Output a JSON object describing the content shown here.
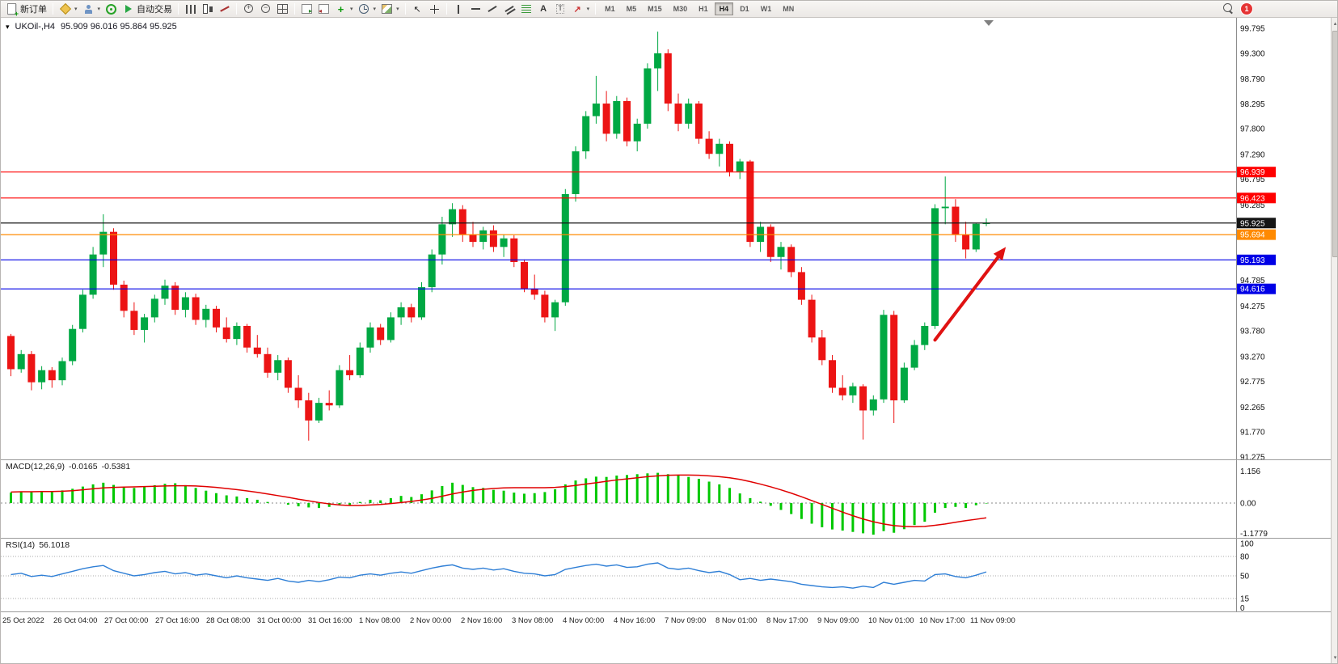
{
  "window": {
    "title_symbol": "UKOil-,H4",
    "ohlc": "95.909 96.016 95.864 95.925"
  },
  "toolbar": {
    "groups": [
      {
        "items": [
          {
            "name": "new-order",
            "icon": "neworder",
            "label": "新订单"
          }
        ]
      },
      {
        "items": [
          {
            "name": "new-chart",
            "icon": "newchart",
            "dropdown": true
          },
          {
            "name": "profiles",
            "icon": "profiles",
            "dropdown": true
          },
          {
            "name": "signals",
            "icon": "signals"
          },
          {
            "name": "auto-trading",
            "icon": "play",
            "label": "自动交易"
          }
        ]
      },
      {
        "items": [
          {
            "name": "bar-chart",
            "icon": "bars"
          },
          {
            "name": "candlestick-chart",
            "icon": "candles"
          },
          {
            "name": "line-chart",
            "icon": "linechart"
          }
        ]
      },
      {
        "items": [
          {
            "name": "zoom-in",
            "icon": "zoomin"
          },
          {
            "name": "zoom-out",
            "icon": "zoomout"
          },
          {
            "name": "tile-windows",
            "icon": "tile"
          }
        ]
      },
      {
        "items": [
          {
            "name": "auto-scroll",
            "icon": "autoscroll"
          },
          {
            "name": "chart-shift",
            "icon": "chartshift"
          },
          {
            "name": "indicators",
            "icon": "indicators",
            "dropdown": true
          },
          {
            "name": "periods",
            "icon": "clock",
            "dropdown": true
          },
          {
            "name": "templates",
            "icon": "templates",
            "dropdown": true
          }
        ]
      },
      {
        "items": [
          {
            "name": "cursor",
            "icon": "cursor"
          },
          {
            "name": "crosshair",
            "icon": "crosshair"
          }
        ]
      },
      {
        "items": [
          {
            "name": "vertical-line",
            "icon": "vline"
          },
          {
            "name": "horizontal-line",
            "icon": "hline"
          },
          {
            "name": "trendline",
            "icon": "trend"
          },
          {
            "name": "equidistant-channel",
            "icon": "channel"
          },
          {
            "name": "fibonacci",
            "icon": "fibo"
          },
          {
            "name": "text",
            "icon": "textA"
          },
          {
            "name": "text-label",
            "icon": "textT"
          },
          {
            "name": "arrows",
            "icon": "arrowtool",
            "dropdown": true
          }
        ]
      }
    ],
    "timeframes": [
      {
        "label": "M1"
      },
      {
        "label": "M5"
      },
      {
        "label": "M15"
      },
      {
        "label": "M30"
      },
      {
        "label": "H1"
      },
      {
        "label": "H4",
        "active": true
      },
      {
        "label": "D1"
      },
      {
        "label": "W1"
      },
      {
        "label": "MN"
      }
    ],
    "notification_count": "1"
  },
  "chart_data": {
    "type": "candlestick",
    "symbol": "UKOil-",
    "period": "H4",
    "ohlc_display": {
      "open": "95.909",
      "high": "96.016",
      "low": "95.864",
      "close": "95.925"
    },
    "colors": {
      "up": "#00A843",
      "down": "#EC1414"
    },
    "price_axis_ticks": [
      "99.795",
      "99.300",
      "98.790",
      "98.295",
      "97.800",
      "97.290",
      "96.795",
      "96.285",
      "94.785",
      "94.275",
      "93.780",
      "93.270",
      "92.775",
      "92.265",
      "91.770",
      "91.275"
    ],
    "horizontal_lines": [
      {
        "price": 96.939,
        "color": "#FF0000",
        "label": "96.939"
      },
      {
        "price": 96.423,
        "color": "#FF0000",
        "label": "96.423"
      },
      {
        "price": 95.925,
        "color": "#151515",
        "label": "95.925"
      },
      {
        "price": 95.694,
        "color": "#FF8A00",
        "label": "95.694"
      },
      {
        "price": 95.193,
        "color": "#0000E6",
        "label": "95.193"
      },
      {
        "price": 94.616,
        "color": "#0000E6",
        "label": "94.616"
      }
    ],
    "arrow_annotation": {
      "from_bar": 90,
      "from_price": 93.6,
      "to_bar": 96.9,
      "to_price": 95.45,
      "color": "#E01212"
    },
    "candles": [
      [
        93.68,
        93.72,
        92.88,
        93.02
      ],
      [
        93.02,
        93.4,
        92.95,
        93.32
      ],
      [
        93.32,
        93.38,
        92.6,
        92.76
      ],
      [
        92.76,
        93.08,
        92.62,
        93.0
      ],
      [
        93.0,
        93.06,
        92.65,
        92.8
      ],
      [
        92.8,
        93.25,
        92.7,
        93.18
      ],
      [
        93.18,
        93.9,
        93.1,
        93.82
      ],
      [
        93.82,
        94.6,
        93.75,
        94.5
      ],
      [
        94.5,
        95.45,
        94.42,
        95.3
      ],
      [
        95.3,
        96.1,
        95.05,
        95.75
      ],
      [
        95.75,
        95.82,
        94.6,
        94.7
      ],
      [
        94.7,
        94.78,
        94.05,
        94.18
      ],
      [
        94.18,
        94.35,
        93.7,
        93.8
      ],
      [
        93.8,
        94.12,
        93.55,
        94.05
      ],
      [
        94.05,
        94.5,
        93.95,
        94.42
      ],
      [
        94.42,
        94.8,
        94.3,
        94.68
      ],
      [
        94.68,
        94.75,
        94.1,
        94.2
      ],
      [
        94.2,
        94.55,
        94.05,
        94.45
      ],
      [
        94.45,
        94.52,
        93.9,
        94.0
      ],
      [
        94.0,
        94.3,
        93.85,
        94.22
      ],
      [
        94.22,
        94.28,
        93.75,
        93.85
      ],
      [
        93.85,
        94.05,
        93.55,
        93.62
      ],
      [
        93.62,
        93.95,
        93.5,
        93.88
      ],
      [
        93.88,
        93.92,
        93.35,
        93.45
      ],
      [
        93.45,
        93.7,
        93.25,
        93.32
      ],
      [
        93.32,
        93.45,
        92.85,
        92.95
      ],
      [
        92.95,
        93.3,
        92.8,
        93.2
      ],
      [
        93.2,
        93.25,
        92.55,
        92.65
      ],
      [
        92.65,
        92.9,
        92.25,
        92.4
      ],
      [
        92.4,
        92.55,
        91.6,
        92.0
      ],
      [
        92.0,
        92.45,
        91.95,
        92.35
      ],
      [
        92.35,
        92.6,
        92.2,
        92.3
      ],
      [
        92.3,
        93.1,
        92.25,
        93.0
      ],
      [
        93.0,
        93.3,
        92.8,
        92.9
      ],
      [
        92.9,
        93.55,
        92.85,
        93.45
      ],
      [
        93.45,
        93.95,
        93.35,
        93.85
      ],
      [
        93.85,
        93.92,
        93.5,
        93.6
      ],
      [
        93.6,
        94.15,
        93.55,
        94.05
      ],
      [
        94.05,
        94.35,
        93.9,
        94.25
      ],
      [
        94.25,
        94.32,
        93.95,
        94.05
      ],
      [
        94.05,
        94.75,
        94.0,
        94.65
      ],
      [
        94.65,
        95.4,
        94.55,
        95.3
      ],
      [
        95.3,
        96.05,
        95.1,
        95.9
      ],
      [
        95.9,
        96.32,
        95.65,
        96.2
      ],
      [
        96.2,
        96.28,
        95.55,
        95.7
      ],
      [
        95.7,
        95.95,
        95.45,
        95.55
      ],
      [
        95.55,
        95.85,
        95.4,
        95.78
      ],
      [
        95.78,
        95.88,
        95.35,
        95.45
      ],
      [
        95.45,
        95.7,
        95.25,
        95.62
      ],
      [
        95.62,
        95.68,
        95.05,
        95.15
      ],
      [
        95.15,
        95.2,
        94.55,
        94.62
      ],
      [
        94.62,
        94.9,
        94.4,
        94.5
      ],
      [
        94.5,
        94.58,
        93.95,
        94.05
      ],
      [
        94.05,
        94.4,
        93.78,
        94.35
      ],
      [
        94.35,
        96.6,
        94.28,
        96.5
      ],
      [
        96.5,
        97.45,
        96.35,
        97.35
      ],
      [
        97.35,
        98.15,
        97.2,
        98.05
      ],
      [
        98.05,
        98.85,
        97.9,
        98.3
      ],
      [
        98.3,
        98.55,
        97.55,
        97.7
      ],
      [
        97.7,
        98.45,
        97.6,
        98.35
      ],
      [
        98.35,
        98.42,
        97.45,
        97.55
      ],
      [
        97.55,
        98.0,
        97.35,
        97.9
      ],
      [
        97.9,
        99.1,
        97.8,
        99.0
      ],
      [
        99.0,
        99.73,
        98.55,
        99.3
      ],
      [
        99.3,
        99.38,
        98.15,
        98.3
      ],
      [
        98.3,
        98.5,
        97.75,
        97.9
      ],
      [
        97.9,
        98.4,
        97.8,
        98.3
      ],
      [
        98.3,
        98.35,
        97.5,
        97.6
      ],
      [
        97.6,
        97.75,
        97.2,
        97.3
      ],
      [
        97.3,
        97.6,
        97.05,
        97.5
      ],
      [
        97.5,
        97.55,
        96.85,
        96.95
      ],
      [
        96.95,
        97.2,
        96.8,
        97.15
      ],
      [
        97.15,
        97.18,
        95.45,
        95.55
      ],
      [
        95.55,
        95.95,
        95.35,
        95.85
      ],
      [
        95.85,
        95.9,
        95.15,
        95.25
      ],
      [
        95.25,
        95.55,
        95.0,
        95.45
      ],
      [
        95.45,
        95.5,
        94.85,
        94.95
      ],
      [
        94.95,
        95.05,
        94.3,
        94.4
      ],
      [
        94.4,
        94.5,
        93.55,
        93.65
      ],
      [
        93.65,
        93.8,
        93.1,
        93.2
      ],
      [
        93.2,
        93.3,
        92.55,
        92.65
      ],
      [
        92.65,
        92.9,
        92.4,
        92.5
      ],
      [
        92.5,
        92.75,
        92.35,
        92.68
      ],
      [
        92.68,
        92.72,
        91.62,
        92.2
      ],
      [
        92.2,
        92.5,
        92.1,
        92.42
      ],
      [
        92.42,
        94.2,
        92.35,
        94.1
      ],
      [
        94.1,
        94.18,
        91.95,
        92.4
      ],
      [
        92.4,
        93.15,
        92.35,
        93.05
      ],
      [
        93.05,
        93.6,
        93.0,
        93.5
      ],
      [
        93.5,
        93.95,
        93.4,
        93.88
      ],
      [
        93.88,
        96.3,
        93.82,
        96.22
      ],
      [
        96.22,
        96.85,
        95.9,
        96.25
      ],
      [
        96.25,
        96.4,
        95.55,
        95.7
      ],
      [
        95.7,
        95.95,
        95.22,
        95.4
      ],
      [
        95.4,
        95.92,
        95.35,
        95.91
      ],
      [
        95.909,
        96.016,
        95.864,
        95.925
      ]
    ]
  },
  "macd": {
    "label": "MACD(12,26,9)",
    "value_main": "-0.0165",
    "value_signal": "-0.5381",
    "axis": [
      "1.156",
      "0.00",
      "-1.1779"
    ],
    "hist_color": "#00C800",
    "signal_color": "#E00000",
    "hist": [
      0.38,
      0.42,
      0.4,
      0.44,
      0.4,
      0.46,
      0.52,
      0.6,
      0.68,
      0.74,
      0.66,
      0.56,
      0.55,
      0.6,
      0.65,
      0.7,
      0.72,
      0.65,
      0.55,
      0.45,
      0.36,
      0.28,
      0.24,
      0.18,
      0.12,
      0.04,
      0.0,
      -0.06,
      -0.12,
      -0.16,
      -0.18,
      -0.14,
      -0.06,
      -0.08,
      0.04,
      0.12,
      0.1,
      0.18,
      0.26,
      0.22,
      0.32,
      0.46,
      0.62,
      0.74,
      0.66,
      0.58,
      0.55,
      0.48,
      0.45,
      0.38,
      0.34,
      0.36,
      0.4,
      0.5,
      0.68,
      0.82,
      0.9,
      0.96,
      0.95,
      1.0,
      1.02,
      1.05,
      1.08,
      1.1,
      1.05,
      1.0,
      0.95,
      0.88,
      0.78,
      0.68,
      0.55,
      0.35,
      0.18,
      0.05,
      -0.1,
      -0.25,
      -0.4,
      -0.58,
      -0.75,
      -0.88,
      -0.96,
      -1.0,
      -1.05,
      -1.1,
      -1.15,
      -1.02,
      -1.08,
      -0.95,
      -0.8,
      -0.68,
      -0.35,
      -0.18,
      -0.14,
      -0.18,
      -0.08,
      -0.0165
    ],
    "signal": [
      0.4,
      0.41,
      0.41,
      0.42,
      0.42,
      0.43,
      0.45,
      0.48,
      0.52,
      0.55,
      0.57,
      0.58,
      0.59,
      0.6,
      0.61,
      0.62,
      0.63,
      0.63,
      0.62,
      0.6,
      0.57,
      0.53,
      0.49,
      0.44,
      0.39,
      0.33,
      0.27,
      0.21,
      0.14,
      0.08,
      0.02,
      -0.03,
      -0.07,
      -0.09,
      -0.09,
      -0.07,
      -0.05,
      -0.02,
      0.02,
      0.06,
      0.11,
      0.17,
      0.25,
      0.33,
      0.4,
      0.46,
      0.5,
      0.53,
      0.55,
      0.56,
      0.56,
      0.56,
      0.56,
      0.57,
      0.6,
      0.64,
      0.69,
      0.74,
      0.79,
      0.84,
      0.88,
      0.92,
      0.96,
      0.99,
      1.01,
      1.02,
      1.02,
      1.01,
      0.99,
      0.96,
      0.92,
      0.86,
      0.78,
      0.69,
      0.59,
      0.48,
      0.36,
      0.23,
      0.09,
      -0.05,
      -0.19,
      -0.33,
      -0.46,
      -0.58,
      -0.68,
      -0.76,
      -0.82,
      -0.85,
      -0.86,
      -0.85,
      -0.81,
      -0.76,
      -0.7,
      -0.64,
      -0.59,
      -0.5381
    ]
  },
  "rsi": {
    "label": "RSI(14)",
    "value": "56.1018",
    "axis": [
      "100",
      "80",
      "50",
      "15",
      "0"
    ],
    "levels": [
      80,
      50,
      15
    ],
    "line_color": "#2F7FD6",
    "values": [
      52,
      54,
      49,
      51,
      49,
      53,
      57,
      61,
      64,
      66,
      58,
      54,
      50,
      52,
      55,
      57,
      53,
      55,
      51,
      53,
      50,
      47,
      50,
      47,
      45,
      43,
      46,
      42,
      40,
      43,
      41,
      44,
      48,
      47,
      51,
      53,
      51,
      54,
      56,
      54,
      58,
      62,
      65,
      67,
      62,
      60,
      62,
      59,
      61,
      57,
      54,
      53,
      50,
      52,
      60,
      63,
      66,
      68,
      65,
      67,
      63,
      64,
      68,
      70,
      62,
      60,
      62,
      58,
      55,
      57,
      52,
      44,
      46,
      43,
      45,
      43,
      41,
      37,
      35,
      33,
      32,
      33,
      31,
      34,
      32,
      40,
      37,
      40,
      43,
      42,
      52,
      53,
      49,
      47,
      51,
      56.1
    ]
  },
  "time_axis": [
    "25 Oct 2022",
    "26 Oct 04:00",
    "27 Oct 00:00",
    "27 Oct 16:00",
    "28 Oct 08:00",
    "31 Oct 00:00",
    "31 Oct 16:00",
    "1 Nov 08:00",
    "2 Nov 00:00",
    "2 Nov 16:00",
    "3 Nov 08:00",
    "4 Nov 00:00",
    "4 Nov 16:00",
    "7 Nov 09:00",
    "8 Nov 01:00",
    "8 Nov 17:00",
    "9 Nov 09:00",
    "10 Nov 01:00",
    "10 Nov 17:00",
    "11 Nov 09:00"
  ]
}
